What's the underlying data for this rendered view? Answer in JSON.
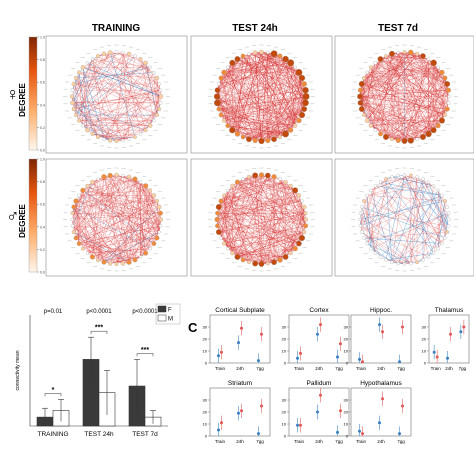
{
  "columns": [
    "TRAINING",
    "TEST 24h",
    "TEST 7d"
  ],
  "rows": [
    {
      "symbol": "♀",
      "colorbar_label": "DEGREE"
    },
    {
      "symbol": "♂",
      "colorbar_label": "DEGREE"
    }
  ],
  "colorbar": {
    "min": 0.0,
    "max": 1.0,
    "ticks": [
      "0.0",
      "0.2",
      "0.4",
      "0.6",
      "0.8",
      "1.0"
    ],
    "colors": [
      "#fff5eb",
      "#fdae6b",
      "#e6550d",
      "#7f2704"
    ]
  },
  "edge_colors": {
    "positive": "#d62728",
    "negative": "#3b83c6"
  },
  "panel_C_label": "C",
  "chart_data": [
    {
      "type": "bar",
      "ylabel": "connectivity mean",
      "categories": [
        "TRAINING",
        "TEST 24h",
        "TEST 7d"
      ],
      "legend": [
        "F",
        "M"
      ],
      "series": [
        {
          "name": "F",
          "color": "#3a3a3a",
          "values": [
            2,
            15,
            9
          ],
          "err": [
            2,
            5,
            6
          ]
        },
        {
          "name": "M",
          "color": "#ffffff",
          "values": [
            3.5,
            7.5,
            2
          ],
          "err": [
            2.5,
            5,
            1.5
          ]
        }
      ],
      "pvalues": [
        "p=0.01",
        "p<0.0001",
        "p<0.0001"
      ],
      "stars": [
        "*",
        "***",
        "***"
      ],
      "ylim": [
        0,
        25
      ]
    },
    {
      "type": "scatter",
      "x": [
        "Train",
        "24h",
        "7gg"
      ],
      "ylim": [
        0,
        40
      ],
      "yticks": [
        "0",
        "10",
        "20",
        "30"
      ],
      "series_colors": {
        "F": "#e05656",
        "M": "#3a7fc0"
      },
      "panels": [
        {
          "title": "Cortical Subplate",
          "F": [
            9,
            29,
            24
          ],
          "M": [
            6,
            17,
            2
          ]
        },
        {
          "title": "Cortex",
          "F": [
            8,
            32,
            16
          ],
          "M": [
            4,
            24,
            5
          ]
        },
        {
          "title": "Hippoc.",
          "F": [
            1,
            26,
            30
          ],
          "M": [
            3,
            32,
            1
          ]
        },
        {
          "title": "Thalamus",
          "F": [
            5,
            24,
            30
          ],
          "M": [
            9,
            4,
            26
          ]
        },
        {
          "title": "Striatum",
          "F": [
            11,
            21,
            25
          ],
          "M": [
            5,
            19,
            2
          ]
        },
        {
          "title": "Pallidum",
          "F": [
            9,
            34,
            21
          ],
          "M": [
            9,
            20,
            3
          ]
        },
        {
          "title": "Hypothalamus",
          "F": [
            2,
            31,
            25
          ],
          "M": [
            4,
            11,
            2
          ]
        }
      ]
    }
  ]
}
